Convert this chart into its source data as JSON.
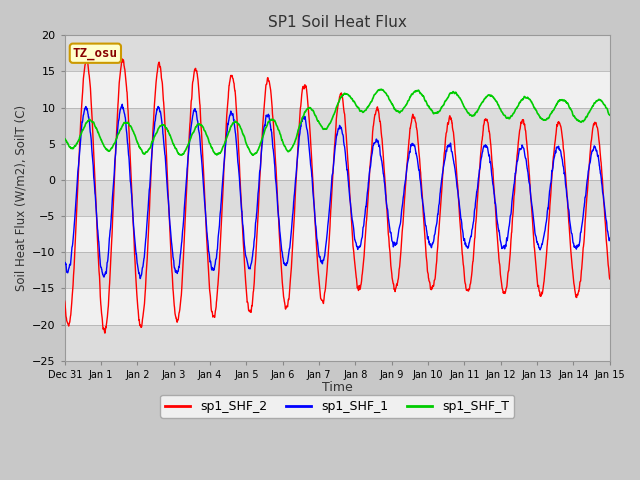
{
  "title": "SP1 Soil Heat Flux",
  "xlabel": "Time",
  "ylabel": "Soil Heat Flux (W/m2), SoilT (C)",
  "ylim": [
    -25,
    20
  ],
  "yticks": [
    -25,
    -20,
    -15,
    -10,
    -5,
    0,
    5,
    10,
    15,
    20
  ],
  "fig_bg_color": "#c8c8c8",
  "plot_bg_light": "#f0f0f0",
  "plot_bg_dark": "#dcdcdc",
  "line_colors": {
    "sp1_SHF_2": "#ff0000",
    "sp1_SHF_1": "#0000ff",
    "sp1_SHF_T": "#00cc00"
  },
  "tz_label": "TZ_osu",
  "tz_bg": "#ffffcc",
  "tz_border": "#cc9900",
  "tz_text_color": "#880000",
  "x_tick_labels": [
    "Dec 31",
    "Jan 1",
    "Jan 2",
    "Jan 3",
    "Jan 4",
    "Jan 5",
    "Jan 6",
    "Jan 7",
    "Jan 8",
    "Jan 9",
    "Jan 10",
    "Jan 11",
    "Jan 12",
    "Jan 13",
    "Jan 14",
    "Jan 15"
  ],
  "n_days": 15,
  "points_per_day": 144,
  "legend_entries": [
    "sp1_SHF_2",
    "sp1_SHF_1",
    "sp1_SHF_T"
  ]
}
